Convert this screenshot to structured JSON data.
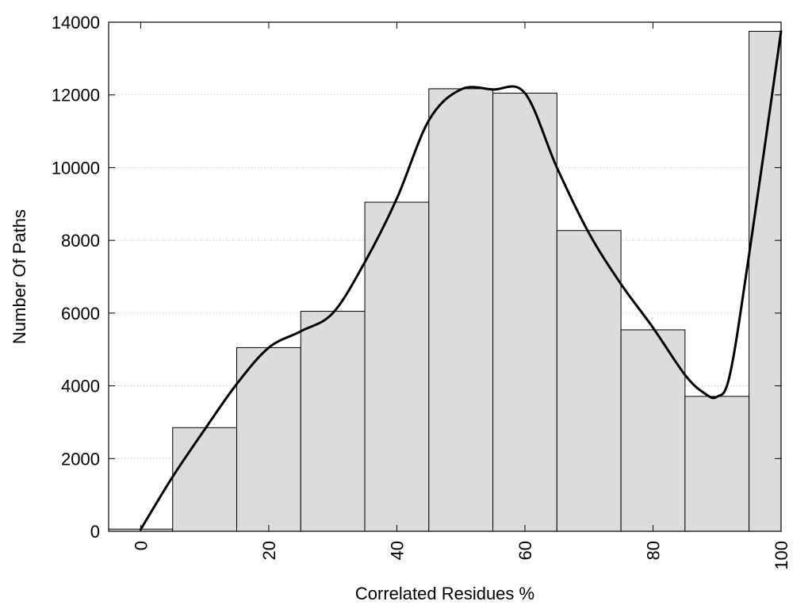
{
  "chart_data": {
    "type": "bar",
    "title": "",
    "xlabel": "Correlated Residues %",
    "ylabel": "Number Of Paths",
    "xlim": [
      -5,
      100
    ],
    "ylim": [
      0,
      14000
    ],
    "grid": {
      "horizontal": true,
      "style": "dotted"
    },
    "colors": {
      "bar_fill": "#dcdcdc",
      "bar_stroke": "#000000",
      "curve": "#000000",
      "grid": "#bbbbbb"
    },
    "x_ticks": [
      {
        "value": 0,
        "label": "0"
      },
      {
        "value": 20,
        "label": "20"
      },
      {
        "value": 40,
        "label": "40"
      },
      {
        "value": 60,
        "label": "60"
      },
      {
        "value": 80,
        "label": "80"
      },
      {
        "value": 100,
        "label": "100"
      }
    ],
    "y_ticks": [
      {
        "value": 0,
        "label": "0"
      },
      {
        "value": 2000,
        "label": "2000"
      },
      {
        "value": 4000,
        "label": "4000"
      },
      {
        "value": 6000,
        "label": "6000"
      },
      {
        "value": 8000,
        "label": "8000"
      },
      {
        "value": 10000,
        "label": "10000"
      },
      {
        "value": 12000,
        "label": "12000"
      },
      {
        "value": 14000,
        "label": "14000"
      }
    ],
    "bars": [
      {
        "x0": -5,
        "x1": 5,
        "value": 60
      },
      {
        "x0": 5,
        "x1": 15,
        "value": 2850
      },
      {
        "x0": 15,
        "x1": 25,
        "value": 5050
      },
      {
        "x0": 25,
        "x1": 35,
        "value": 6050
      },
      {
        "x0": 35,
        "x1": 45,
        "value": 9050
      },
      {
        "x0": 45,
        "x1": 55,
        "value": 12170
      },
      {
        "x0": 55,
        "x1": 65,
        "value": 12050
      },
      {
        "x0": 65,
        "x1": 75,
        "value": 8270
      },
      {
        "x0": 75,
        "x1": 85,
        "value": 5540
      },
      {
        "x0": 85,
        "x1": 95,
        "value": 3710
      },
      {
        "x0": 95,
        "x1": 100,
        "value": 13750
      }
    ],
    "curve": [
      {
        "x": 0,
        "y": 50
      },
      {
        "x": 5,
        "y": 1500
      },
      {
        "x": 10,
        "y": 2800
      },
      {
        "x": 15,
        "y": 4050
      },
      {
        "x": 20,
        "y": 5050
      },
      {
        "x": 25,
        "y": 5500
      },
      {
        "x": 30,
        "y": 6000
      },
      {
        "x": 35,
        "y": 7400
      },
      {
        "x": 40,
        "y": 9150
      },
      {
        "x": 45,
        "y": 11300
      },
      {
        "x": 50,
        "y": 12150
      },
      {
        "x": 55,
        "y": 12150
      },
      {
        "x": 60,
        "y": 12050
      },
      {
        "x": 65,
        "y": 10000
      },
      {
        "x": 70,
        "y": 8200
      },
      {
        "x": 75,
        "y": 6800
      },
      {
        "x": 80,
        "y": 5600
      },
      {
        "x": 85,
        "y": 4300
      },
      {
        "x": 88,
        "y": 3800
      },
      {
        "x": 90,
        "y": 3700
      },
      {
        "x": 92,
        "y": 4300
      },
      {
        "x": 95,
        "y": 7600
      },
      {
        "x": 100,
        "y": 13750
      }
    ]
  }
}
